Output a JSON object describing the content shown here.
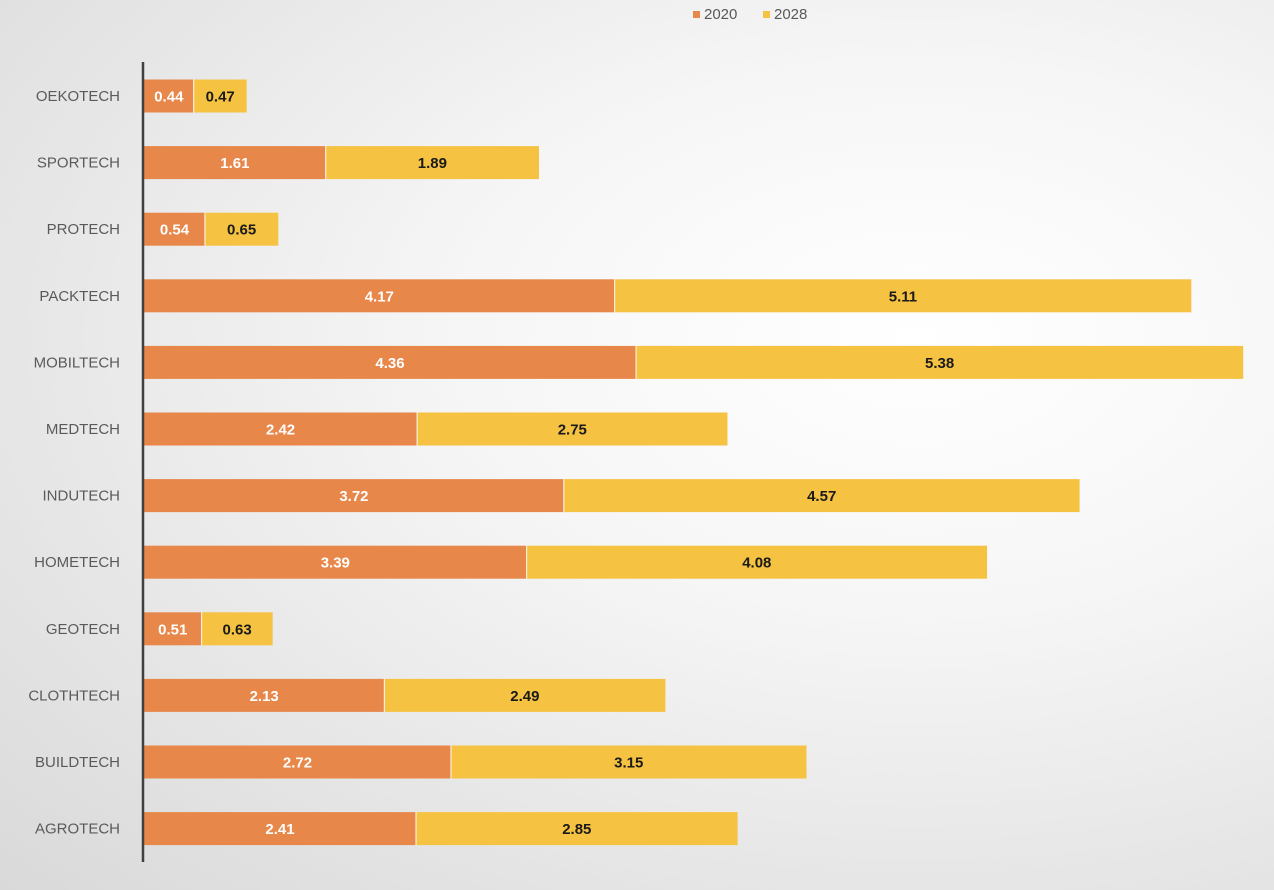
{
  "chart_data": {
    "type": "bar",
    "orientation": "horizontal",
    "stacked": true,
    "title": "",
    "xlabel": "",
    "ylabel": "",
    "categories": [
      "OEKOTECH",
      "SPORTECH",
      "PROTECH",
      "PACKTECH",
      "MOBILTECH",
      "MEDTECH",
      "INDUTECH",
      "HOMETECH",
      "GEOTECH",
      "CLOTHTECH",
      "BUILDTECH",
      "AGROTECH"
    ],
    "series": [
      {
        "name": "2020",
        "color": "#E8874A",
        "label_color": "#ffffff",
        "values": [
          0.44,
          1.61,
          0.54,
          4.17,
          4.36,
          2.42,
          3.72,
          3.39,
          0.51,
          2.13,
          2.72,
          2.41
        ],
        "labels": [
          "0.44",
          "1.61",
          "0.54",
          "4.17",
          "4.36",
          "2.42",
          "3.72",
          "3.39",
          "0.51",
          "2.13",
          "2.72",
          "2.41"
        ]
      },
      {
        "name": "2028",
        "color": "#F5C242",
        "label_color": "#1a1a1a",
        "values": [
          0.47,
          1.89,
          0.65,
          5.11,
          5.38,
          2.75,
          4.57,
          4.08,
          0.63,
          2.49,
          3.15,
          2.85
        ],
        "labels": [
          "0.47",
          "1.89",
          "0.65",
          "5.11",
          "5.38",
          "2.75",
          "4.57",
          "4.08",
          "0.63",
          "2.49",
          "3.15",
          "2.85"
        ]
      }
    ],
    "xlim": [
      0,
      9.8
    ],
    "grid": false,
    "legend_position": "top-center",
    "axis_color": "#404040"
  }
}
